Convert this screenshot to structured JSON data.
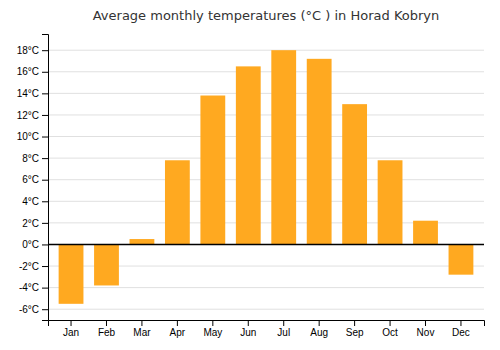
{
  "chart_data": {
    "type": "bar",
    "title": "Average monthly temperatures (°C ) in Horad Kobryn",
    "categories": [
      "Jan",
      "Feb",
      "Mar",
      "Apr",
      "May",
      "Jun",
      "Jul",
      "Aug",
      "Sep",
      "Oct",
      "Nov",
      "Dec"
    ],
    "values": [
      -5.5,
      -3.8,
      0.5,
      7.8,
      13.8,
      16.5,
      18.0,
      17.2,
      13.0,
      7.8,
      2.2,
      -2.8
    ],
    "color": "#FFA920",
    "ylim": [
      -7,
      19.5
    ],
    "yticks": [
      {
        "value": -6,
        "label": "-6°C"
      },
      {
        "value": -4,
        "label": "-4°C"
      },
      {
        "value": -2,
        "label": "-2°C"
      },
      {
        "value": 0,
        "label": "0°C"
      },
      {
        "value": 2,
        "label": "2°C"
      },
      {
        "value": 4,
        "label": "4°C"
      },
      {
        "value": 6,
        "label": "6°C"
      },
      {
        "value": 8,
        "label": "8°C"
      },
      {
        "value": 10,
        "label": "10°C"
      },
      {
        "value": 12,
        "label": "12°C"
      },
      {
        "value": 14,
        "label": "14°C"
      },
      {
        "value": 16,
        "label": "16°C"
      },
      {
        "value": 18,
        "label": "18°C"
      }
    ],
    "grid": true
  }
}
